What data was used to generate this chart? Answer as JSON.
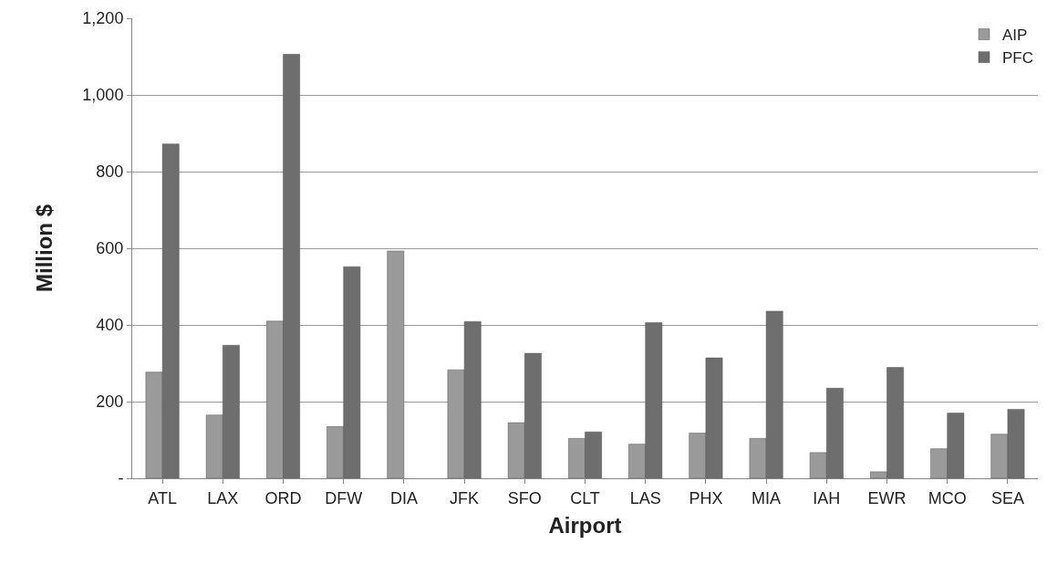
{
  "chart_data": {
    "type": "bar",
    "xlabel": "Airport",
    "ylabel": "Million $",
    "categories": [
      "ATL",
      "LAX",
      "ORD",
      "DFW",
      "DIA",
      "JFK",
      "SFO",
      "CLT",
      "LAS",
      "PHX",
      "MIA",
      "IAH",
      "EWR",
      "MCO",
      "SEA"
    ],
    "series": [
      {
        "name": "AIP",
        "color": "#9a9a9a",
        "values": [
          277,
          165,
          410,
          135,
          593,
          283,
          145,
          104,
          89,
          118,
          104,
          67,
          17,
          77,
          115
        ]
      },
      {
        "name": "PFC",
        "color": "#6e6e6e",
        "values": [
          872,
          347,
          1106,
          552,
          null,
          409,
          326,
          121,
          406,
          314,
          436,
          235,
          289,
          170,
          180
        ]
      }
    ],
    "ylim": [
      0,
      1200
    ],
    "yticks": [
      {
        "value": 0,
        "label": "-"
      },
      {
        "value": 200,
        "label": "200"
      },
      {
        "value": 400,
        "label": "400"
      },
      {
        "value": 600,
        "label": "600"
      },
      {
        "value": 800,
        "label": "800"
      },
      {
        "value": 1000,
        "label": "1,000"
      },
      {
        "value": 1200,
        "label": "1,200"
      }
    ],
    "grid": "y",
    "legend": "top right"
  }
}
